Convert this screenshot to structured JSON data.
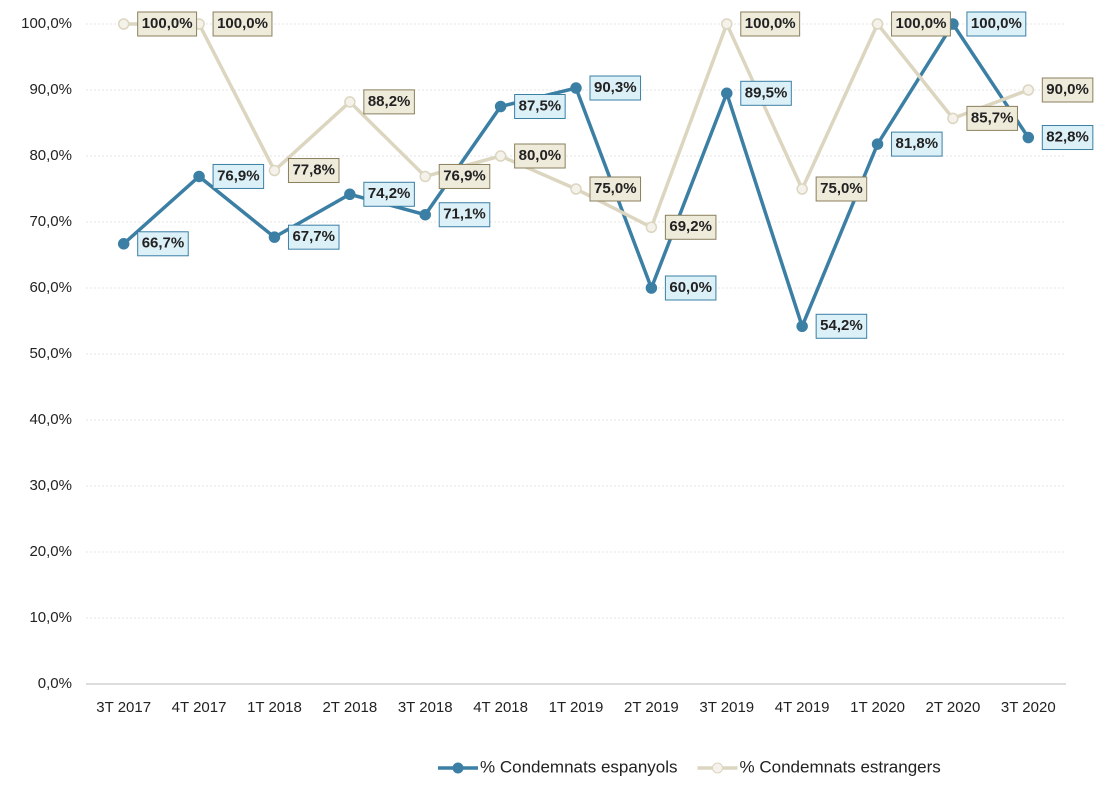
{
  "chart_data": {
    "type": "line",
    "categories": [
      "3T 2017",
      "4T 2017",
      "1T 2018",
      "2T 2018",
      "3T 2018",
      "4T 2018",
      "1T 2019",
      "2T 2019",
      "3T 2019",
      "4T 2019",
      "1T 2020",
      "2T 2020",
      "3T 2020"
    ],
    "series": [
      {
        "name": "% Condemnats espanyols",
        "color": "#3c7fa5",
        "label_fill": "#dcf0f8",
        "label_text": "#2a5873",
        "values": [
          66.7,
          76.9,
          67.7,
          74.2,
          71.1,
          87.5,
          90.3,
          60.0,
          89.5,
          54.2,
          81.8,
          100.0,
          82.8
        ],
        "value_labels": [
          "66,7%",
          "76,9%",
          "67,7%",
          "74,2%",
          "71,1%",
          "87,5%",
          "90,3%",
          "60,0%",
          "89,5%",
          "54,2%",
          "81,8%",
          "100,0%",
          "82,8%"
        ]
      },
      {
        "name": "% Condemnats estrangers",
        "color": "#dcd6c0",
        "label_fill": "#efebdb",
        "label_text": "#2a2a2a",
        "label_border": "#8a7f5c",
        "values": [
          100.0,
          100.0,
          77.8,
          88.2,
          76.9,
          80.0,
          75.0,
          69.2,
          100.0,
          75.0,
          100.0,
          85.7,
          90.0
        ],
        "value_labels": [
          "100,0%",
          "100,0%",
          "77,8%",
          "88,2%",
          "76,9%",
          "80,0%",
          "75,0%",
          "69,2%",
          "100,0%",
          "75,0%",
          "100,0%",
          "85,7%",
          "90,0%"
        ]
      }
    ],
    "ylim": [
      0,
      100
    ],
    "yticks": [
      {
        "value": 0,
        "label": "0,0%"
      },
      {
        "value": 10,
        "label": "10,0%"
      },
      {
        "value": 20,
        "label": "20,0%"
      },
      {
        "value": 30,
        "label": "30,0%"
      },
      {
        "value": 40,
        "label": "40,0%"
      },
      {
        "value": 50,
        "label": "50,0%"
      },
      {
        "value": 60,
        "label": "60,0%"
      },
      {
        "value": 70,
        "label": "70,0%"
      },
      {
        "value": 80,
        "label": "80,0%"
      },
      {
        "value": 90,
        "label": "90,0%"
      },
      {
        "value": 100,
        "label": "100,0%"
      }
    ],
    "grid": true,
    "legend": "bottom"
  }
}
